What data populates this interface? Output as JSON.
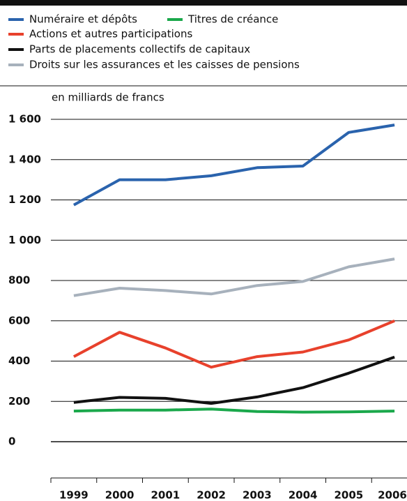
{
  "chart_data": {
    "type": "line",
    "unit_label": "en milliards de francs",
    "categories": [
      "1999",
      "2000",
      "2001",
      "2002",
      "2003",
      "2004",
      "2005",
      "2006"
    ],
    "series": [
      {
        "name": "Numéraire et dépôts",
        "color": "#2a63ad",
        "values": [
          1175,
          1300,
          1300,
          1320,
          1360,
          1368,
          1535,
          1572
        ]
      },
      {
        "name": "Titres de créance",
        "color": "#1aa84b",
        "values": [
          152,
          157,
          157,
          162,
          150,
          147,
          148,
          152
        ]
      },
      {
        "name": "Actions et autres participations",
        "color": "#e8412c",
        "values": [
          422,
          543,
          465,
          370,
          422,
          445,
          505,
          600
        ]
      },
      {
        "name": "Parts de placements collectifs de capitaux",
        "color": "#111111",
        "values": [
          195,
          220,
          215,
          190,
          222,
          268,
          340,
          420
        ]
      },
      {
        "name": "Droits sur les assurances et les caisses de pensions",
        "color": "#a7b1bc",
        "values": [
          725,
          762,
          750,
          733,
          775,
          795,
          868,
          907
        ]
      }
    ],
    "ylim": [
      -200,
      1600
    ],
    "yticks": [
      0,
      200,
      400,
      600,
      800,
      {
        "value": 1000,
        "label": "1 000"
      },
      {
        "value": 1200,
        "label": "1 200"
      },
      {
        "value": 1400,
        "label": "1 400"
      },
      {
        "value": 1600,
        "label": "1 600"
      }
    ],
    "grid": true
  }
}
